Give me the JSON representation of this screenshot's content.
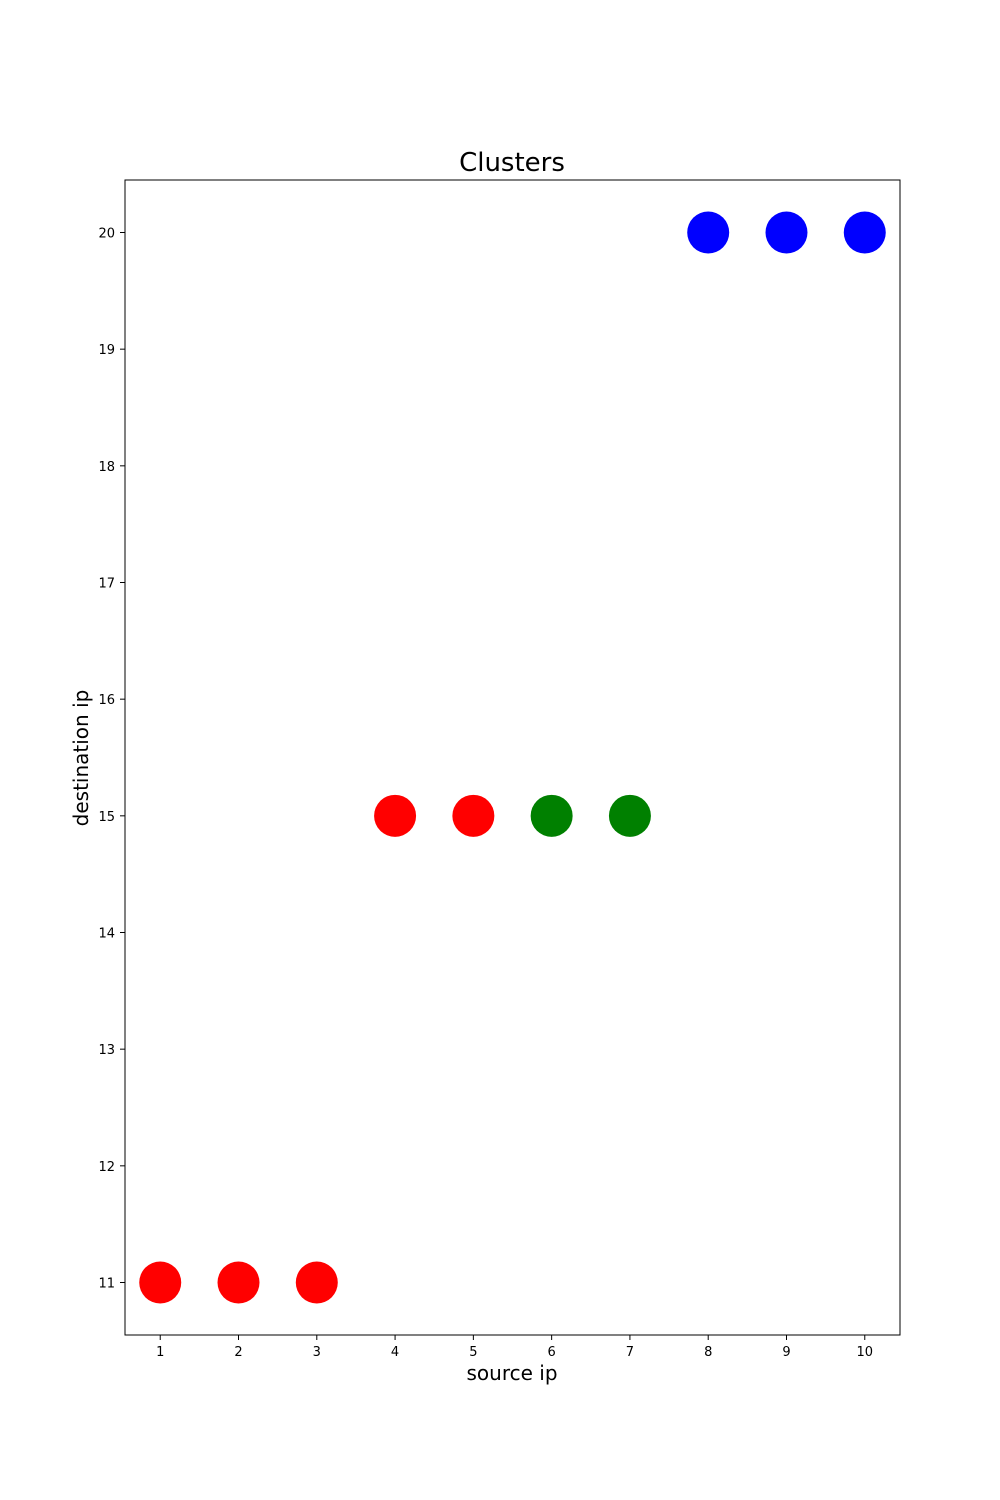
{
  "chart_data": {
    "type": "scatter",
    "title": "Clusters",
    "xlabel": "source ip",
    "ylabel": "destination ip",
    "xlim": [
      0.55,
      10.45
    ],
    "ylim": [
      10.55,
      20.45
    ],
    "xticks": [
      1,
      2,
      3,
      4,
      5,
      6,
      7,
      8,
      9,
      10
    ],
    "yticks": [
      11,
      12,
      13,
      14,
      15,
      16,
      17,
      18,
      19,
      20
    ],
    "grid": false,
    "points": [
      {
        "x": 1,
        "y": 11,
        "color": "#ff0000"
      },
      {
        "x": 2,
        "y": 11,
        "color": "#ff0000"
      },
      {
        "x": 3,
        "y": 11,
        "color": "#ff0000"
      },
      {
        "x": 4,
        "y": 15,
        "color": "#ff0000"
      },
      {
        "x": 5,
        "y": 15,
        "color": "#ff0000"
      },
      {
        "x": 6,
        "y": 15,
        "color": "#008000"
      },
      {
        "x": 7,
        "y": 15,
        "color": "#008000"
      },
      {
        "x": 8,
        "y": 20,
        "color": "#0000ff"
      },
      {
        "x": 9,
        "y": 20,
        "color": "#0000ff"
      },
      {
        "x": 10,
        "y": 20,
        "color": "#0000ff"
      }
    ]
  }
}
